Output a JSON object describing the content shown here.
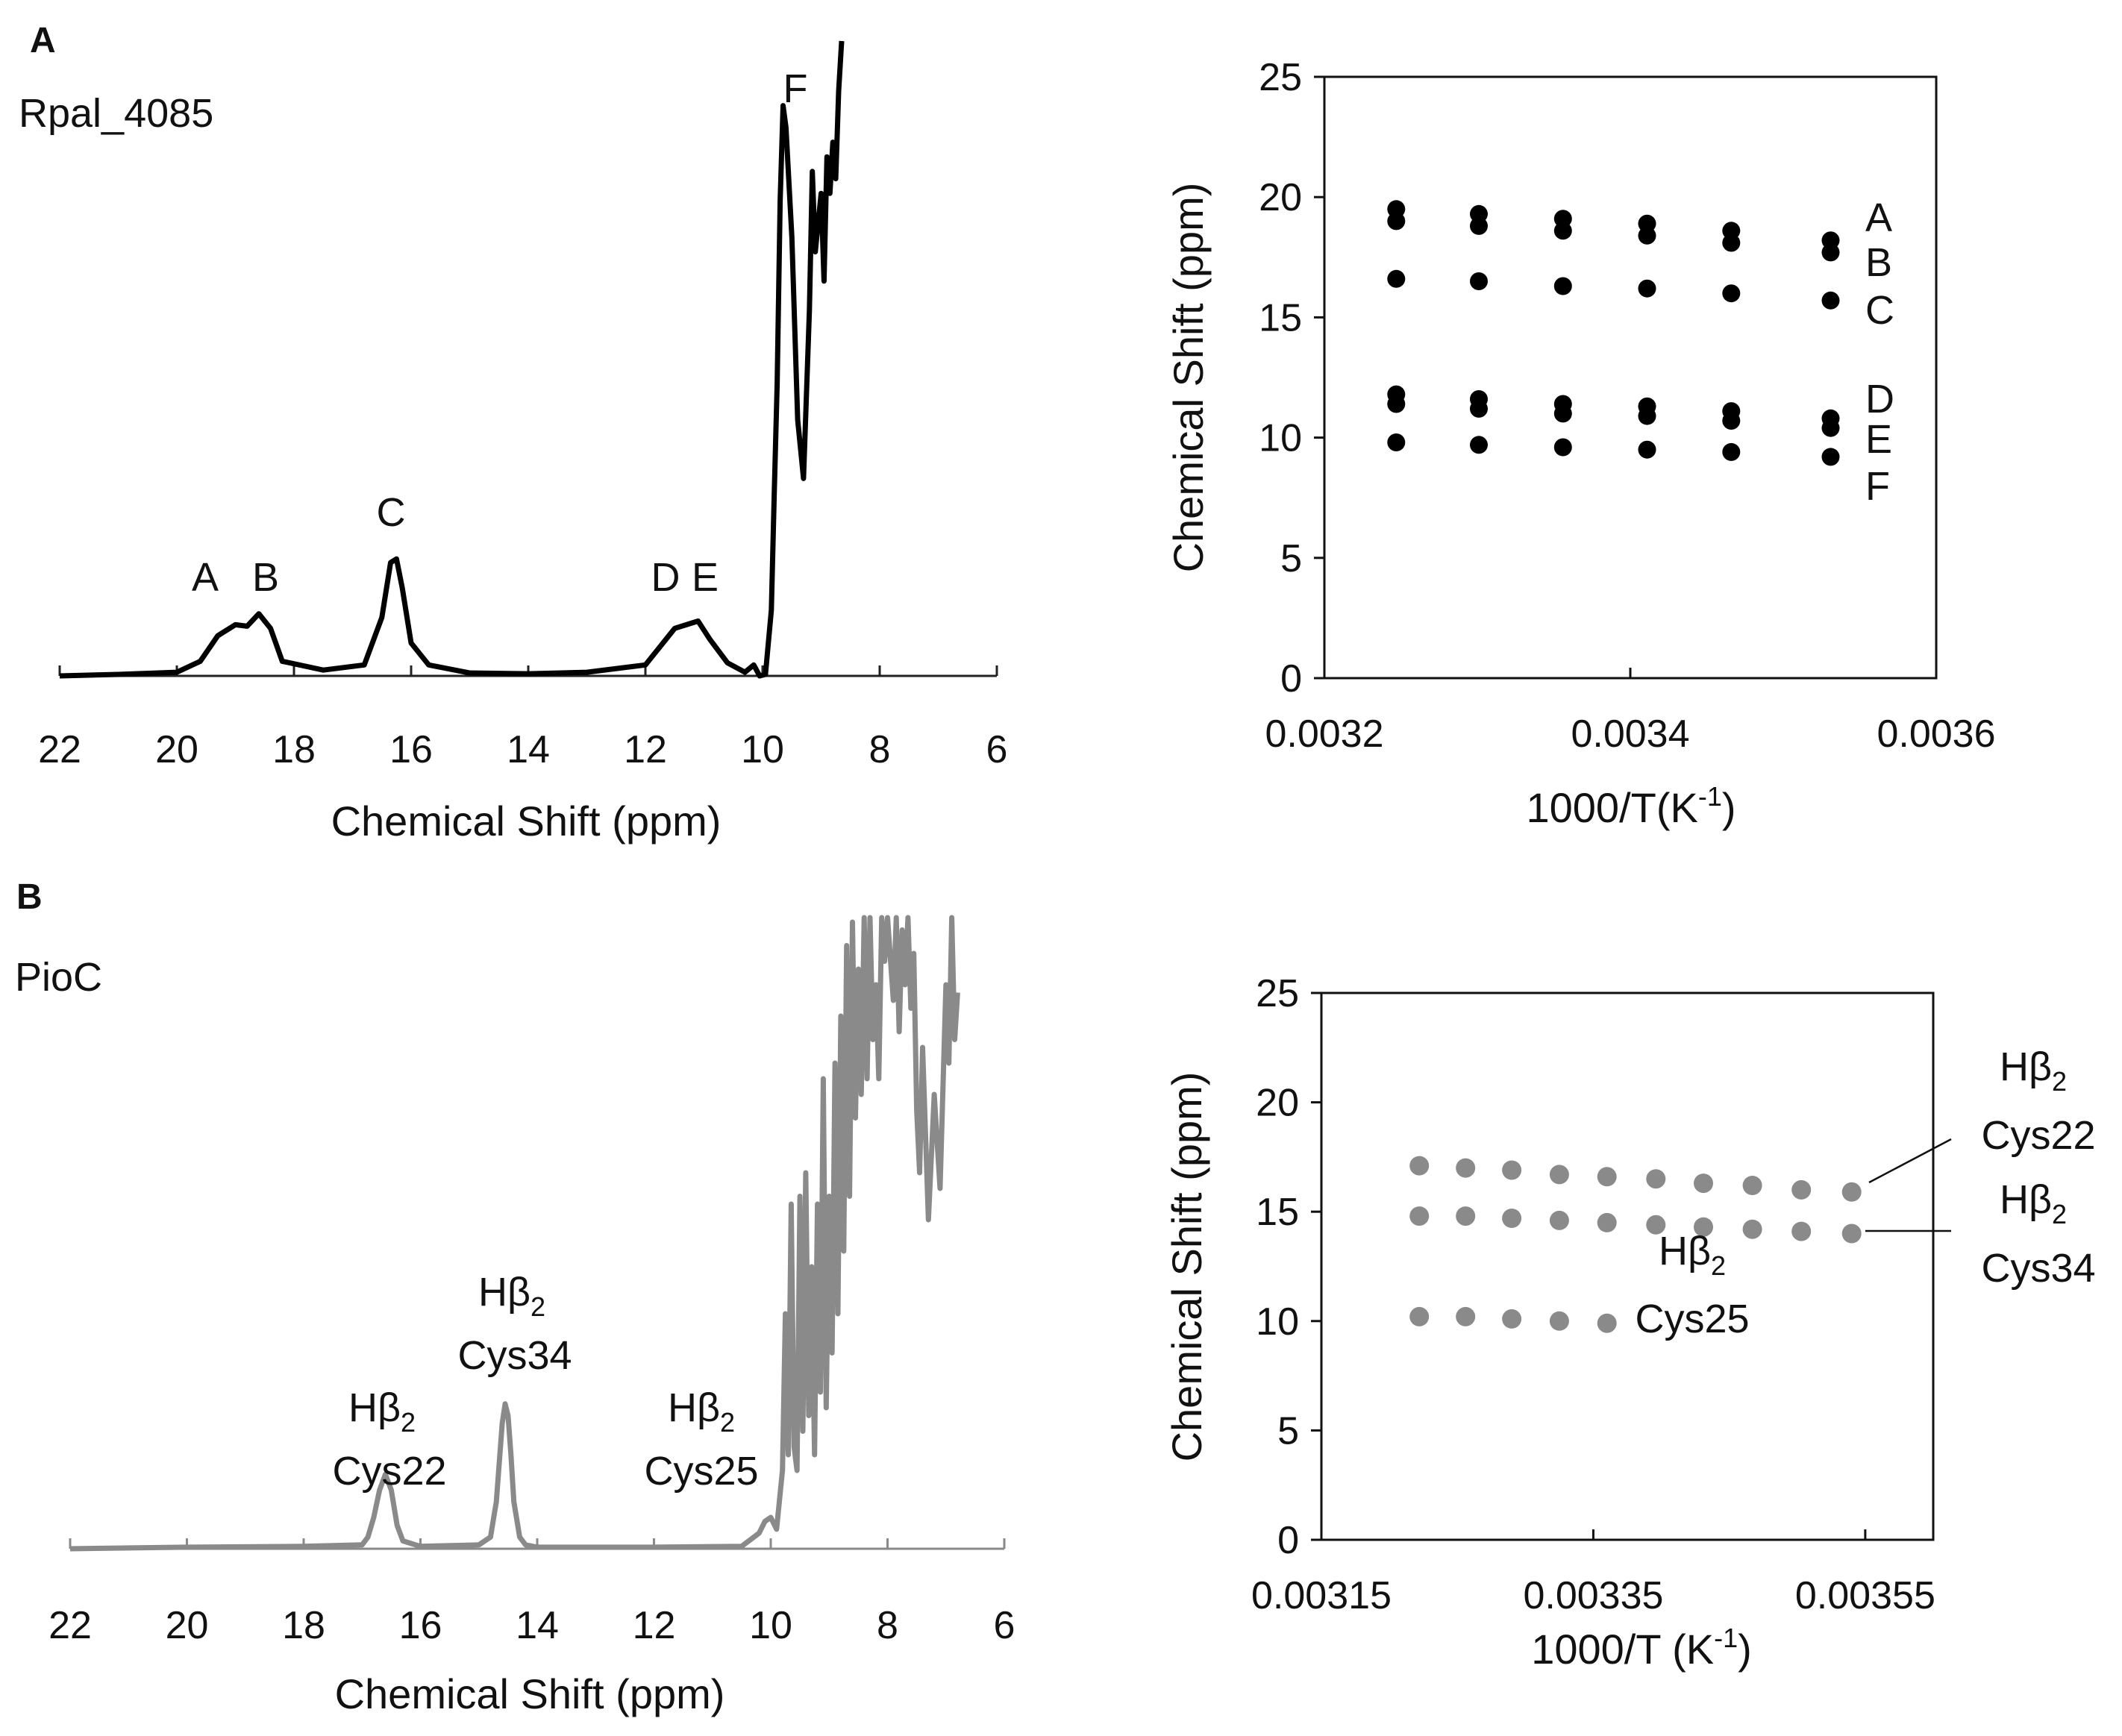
{
  "panels": {
    "A": {
      "letter": "A",
      "sample": "Rpal_4085"
    },
    "B": {
      "letter": "B",
      "sample": "PioC"
    }
  },
  "chart_data": [
    {
      "id": "A-spectrum",
      "type": "line",
      "title": "",
      "xlabel": "Chemical Shift (ppm)",
      "ylabel": "",
      "xlim": [
        22,
        6
      ],
      "xticks": [
        "22",
        "20",
        "18",
        "16",
        "14",
        "12",
        "10",
        "8",
        "6"
      ],
      "color": "#000000",
      "peaks": [
        {
          "label": "A",
          "x": 19.0
        },
        {
          "label": "B",
          "x": 18.6
        },
        {
          "label": "C",
          "x": 16.3
        },
        {
          "label": "D",
          "x": 11.5
        },
        {
          "label": "E",
          "x": 11.1
        },
        {
          "label": "F",
          "x": 9.6
        }
      ],
      "series": [
        {
          "name": "Rpal_4085",
          "x": [
            22.0,
            21.0,
            20.0,
            19.6,
            19.3,
            19.0,
            18.8,
            18.6,
            18.4,
            18.2,
            17.5,
            16.8,
            16.5,
            16.35,
            16.25,
            16.15,
            16.0,
            15.7,
            15.0,
            14.0,
            13.0,
            12.0,
            11.7,
            11.5,
            11.3,
            11.1,
            10.9,
            10.6,
            10.3,
            10.15,
            10.05,
            9.95,
            9.85,
            9.8,
            9.75,
            9.7,
            9.65,
            9.6,
            9.5,
            9.4,
            9.3,
            9.2,
            9.15,
            9.1,
            9.0,
            8.95,
            8.9,
            8.85,
            8.8,
            8.75,
            8.7,
            8.65
          ],
          "values": [
            0.0,
            0.02,
            0.05,
            0.2,
            0.55,
            0.7,
            0.68,
            0.85,
            0.65,
            0.2,
            0.08,
            0.15,
            0.8,
            1.55,
            1.6,
            1.2,
            0.45,
            0.15,
            0.04,
            0.03,
            0.05,
            0.15,
            0.45,
            0.65,
            0.7,
            0.75,
            0.5,
            0.18,
            0.05,
            0.15,
            0.0,
            0.02,
            0.9,
            2.5,
            4.0,
            6.5,
            7.8,
            7.5,
            6.0,
            3.5,
            2.7,
            5.0,
            6.9,
            5.8,
            6.6,
            5.4,
            7.1,
            6.6,
            7.3,
            6.8,
            8.0,
            8.7
          ]
        }
      ]
    },
    {
      "id": "A-temperature",
      "type": "scatter",
      "title": "",
      "xlabel": "1000/T(K",
      "xlabel_sup": "-1",
      "xlabel_end": ")",
      "ylabel": "Chemical Shift (ppm)",
      "xlim": [
        0.0032,
        0.0036
      ],
      "ylim": [
        0,
        25
      ],
      "xticks": [
        "0.0032",
        "0.0034",
        "0.0036"
      ],
      "yticks": [
        "0",
        "5",
        "10",
        "15",
        "20",
        "25"
      ],
      "x": [
        0.003247,
        0.003301,
        0.003356,
        0.003411,
        0.003466,
        0.003531
      ],
      "color": "#000000",
      "series": [
        {
          "name": "A",
          "values": [
            19.5,
            19.3,
            19.1,
            18.9,
            18.6,
            18.2
          ]
        },
        {
          "name": "B",
          "values": [
            19.0,
            18.8,
            18.6,
            18.4,
            18.1,
            17.7
          ]
        },
        {
          "name": "C",
          "values": [
            16.6,
            16.5,
            16.3,
            16.2,
            16.0,
            15.7
          ]
        },
        {
          "name": "D",
          "values": [
            11.8,
            11.6,
            11.4,
            11.3,
            11.1,
            10.8
          ]
        },
        {
          "name": "E",
          "values": [
            11.4,
            11.2,
            11.0,
            10.9,
            10.7,
            10.4
          ]
        },
        {
          "name": "F",
          "values": [
            9.8,
            9.7,
            9.6,
            9.5,
            9.4,
            9.2
          ]
        }
      ]
    },
    {
      "id": "B-spectrum",
      "type": "line",
      "title": "",
      "xlabel": "Chemical Shift (ppm)",
      "ylabel": "",
      "xlim": [
        22,
        6
      ],
      "xticks": [
        "22",
        "20",
        "18",
        "16",
        "14",
        "12",
        "10",
        "8",
        "6"
      ],
      "color": "#8a8a8a",
      "peaks": [
        {
          "label": "Cys22",
          "x": 16.6
        },
        {
          "label": "Cys34",
          "x": 14.5
        },
        {
          "label": "Cys25",
          "x": 10.0
        }
      ],
      "series": [
        {
          "name": "PioC",
          "x": [
            22.0,
            20.0,
            18.0,
            17.0,
            16.9,
            16.8,
            16.7,
            16.6,
            16.5,
            16.4,
            16.3,
            16.0,
            15.0,
            14.8,
            14.7,
            14.6,
            14.55,
            14.5,
            14.45,
            14.4,
            14.3,
            14.2,
            14.0,
            12.0,
            10.5,
            10.2,
            10.1,
            10.0,
            9.9,
            9.8,
            9.75,
            9.7,
            9.65,
            9.6,
            9.55,
            9.5,
            9.45,
            9.4,
            9.35,
            9.3,
            9.25,
            9.2,
            9.15,
            9.1,
            9.05,
            9.0,
            8.95,
            8.9,
            8.85,
            8.8,
            8.75,
            8.7,
            8.65,
            8.6,
            8.55,
            8.5,
            8.45,
            8.4,
            8.35,
            8.3,
            8.25,
            8.2,
            8.15,
            8.1,
            8.05,
            8.0,
            7.9,
            7.85,
            7.8,
            7.75,
            7.7,
            7.65,
            7.6,
            7.55,
            7.5,
            7.45,
            7.4,
            7.3,
            7.2,
            7.1,
            7.0,
            6.95,
            6.9,
            6.85,
            6.8
          ],
          "values": [
            0.0,
            0.02,
            0.03,
            0.05,
            0.15,
            0.4,
            0.75,
            0.95,
            0.75,
            0.3,
            0.1,
            0.03,
            0.05,
            0.15,
            0.6,
            1.6,
            1.85,
            1.7,
            1.2,
            0.6,
            0.15,
            0.05,
            0.02,
            0.02,
            0.03,
            0.2,
            0.35,
            0.4,
            0.25,
            1.0,
            3.0,
            1.2,
            4.4,
            1.3,
            1.0,
            4.5,
            1.5,
            4.8,
            1.7,
            3.6,
            1.2,
            4.4,
            2.0,
            6.0,
            1.8,
            4.5,
            2.5,
            6.2,
            3.0,
            6.8,
            3.8,
            7.7,
            4.5,
            8.0,
            5.5,
            7.4,
            5.8,
            8.5,
            6.0,
            8.3,
            6.5,
            7.2,
            6.0,
            8.2,
            7.5,
            8.4,
            7.0,
            8.5,
            6.6,
            7.9,
            7.2,
            8.4,
            6.9,
            7.6,
            5.6,
            4.8,
            6.4,
            4.2,
            5.8,
            4.6,
            7.2,
            6.2,
            8.4,
            6.5,
            7.1
          ]
        }
      ]
    },
    {
      "id": "B-temperature",
      "type": "scatter",
      "title": "",
      "xlabel": "1000/T (K",
      "xlabel_sup": "-1",
      "xlabel_end": ")",
      "ylabel": "Chemical Shift (ppm)",
      "xlim": [
        0.00315,
        0.0036
      ],
      "ylim": [
        0,
        25
      ],
      "xticks": [
        "0.00315",
        "0.00335",
        "0.00355"
      ],
      "yticks": [
        "0",
        "5",
        "10",
        "15",
        "20",
        "25"
      ],
      "color": "#8a8a8a",
      "series": [
        {
          "name": "Cys22",
          "x": [
            0.003222,
            0.003256,
            0.00329,
            0.003325,
            0.00336,
            0.003396,
            0.003431,
            0.003467,
            0.003503,
            0.00354
          ],
          "values": [
            17.1,
            17.0,
            16.9,
            16.7,
            16.6,
            16.5,
            16.3,
            16.2,
            16.0,
            15.9
          ]
        },
        {
          "name": "Cys34",
          "x": [
            0.003222,
            0.003256,
            0.00329,
            0.003325,
            0.00336,
            0.003396,
            0.003431,
            0.003467,
            0.003503,
            0.00354
          ],
          "values": [
            14.8,
            14.8,
            14.7,
            14.6,
            14.5,
            14.4,
            14.3,
            14.2,
            14.1,
            14.0
          ]
        },
        {
          "name": "Cys25",
          "x": [
            0.003222,
            0.003256,
            0.00329,
            0.003325,
            0.00336
          ],
          "values": [
            10.2,
            10.2,
            10.1,
            10.0,
            9.9
          ]
        }
      ]
    }
  ],
  "annotations": {
    "h_beta": "Hβ",
    "sub": "2"
  }
}
